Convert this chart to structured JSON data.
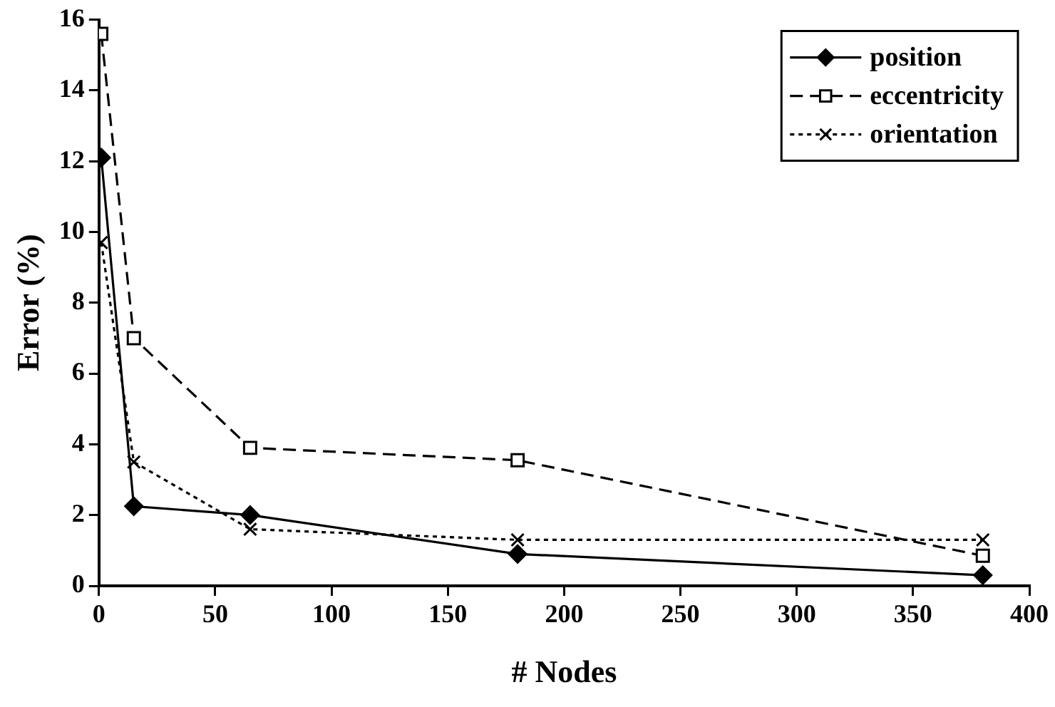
{
  "chart_data": {
    "type": "line",
    "xlabel": "# Nodes",
    "ylabel": "Error (%)",
    "x": [
      1,
      15,
      65,
      180,
      380
    ],
    "xlim": [
      0,
      400
    ],
    "xticks": [
      0,
      50,
      100,
      150,
      200,
      250,
      300,
      350,
      400
    ],
    "ylim": [
      0,
      16
    ],
    "yticks": [
      0,
      2,
      4,
      6,
      8,
      10,
      12,
      14,
      16
    ],
    "grid": false,
    "legend": "top right",
    "series": [
      {
        "name": "position",
        "color": "#000000",
        "marker": "diamond",
        "line_style": "solid",
        "values": [
          12.1,
          2.25,
          2.0,
          0.9,
          0.3
        ]
      },
      {
        "name": "eccentricity",
        "color": "#000000",
        "marker": "square",
        "line_style": "dashed",
        "values": [
          15.6,
          7.0,
          3.9,
          3.55,
          0.85
        ]
      },
      {
        "name": "orientation",
        "color": "#000000",
        "marker": "cross",
        "line_style": "dotted",
        "values": [
          9.7,
          3.5,
          1.6,
          1.3,
          1.3
        ]
      }
    ]
  }
}
